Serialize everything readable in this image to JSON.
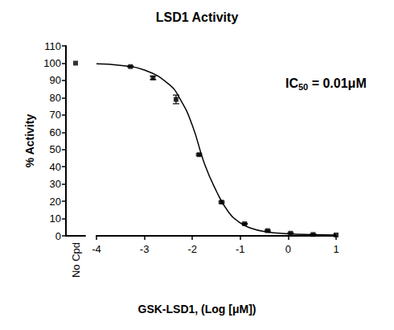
{
  "chart_data": {
    "type": "scatter",
    "title": "LSD1 Activity",
    "x_label": "GSK-LSD1, (Log [μM])",
    "y_label": "% Activity",
    "annotation": [
      {
        "text": "IC"
      },
      {
        "text": "50",
        "sub": true
      },
      {
        "text": " = 0.01μM"
      }
    ],
    "xlim": [
      -4,
      1
    ],
    "xticks": [
      -4,
      -3,
      -2,
      -1,
      0,
      1
    ],
    "ylim": [
      0,
      110
    ],
    "yticks": [
      0,
      10,
      20,
      30,
      40,
      50,
      60,
      70,
      80,
      90,
      100,
      110
    ],
    "grid": false,
    "control": {
      "categories": [
        "No Cpd"
      ],
      "values": [
        100
      ],
      "color": "#000000",
      "marker": "square"
    },
    "series": [
      {
        "type": "scatter",
        "marker": "square",
        "color": "#000000",
        "x": [
          -3.29,
          -2.82,
          -2.34,
          -1.86,
          -1.39,
          -0.91,
          -0.43,
          0.05,
          0.52,
          1.0
        ],
        "values": [
          98,
          91.5,
          79,
          47,
          19.5,
          7,
          3,
          1.5,
          0.8,
          0.5
        ],
        "errors": [
          0.3,
          1,
          2.5,
          0.5,
          0.5,
          0.3,
          0.3,
          0.3,
          0.3,
          0.3
        ]
      },
      {
        "type": "line",
        "line_style": "solid",
        "color": "#000000",
        "x": [
          -4,
          -3.5,
          -3,
          -2.5,
          -2.25,
          -2,
          -1.75,
          -1.5,
          -1.25,
          -1,
          -0.75,
          -0.5,
          0,
          0.5,
          1
        ],
        "values": [
          99.6,
          98.7,
          96,
          88,
          79,
          64,
          42,
          26,
          14,
          7.5,
          4.2,
          2.5,
          1.2,
          0.7,
          0.5
        ]
      }
    ]
  }
}
